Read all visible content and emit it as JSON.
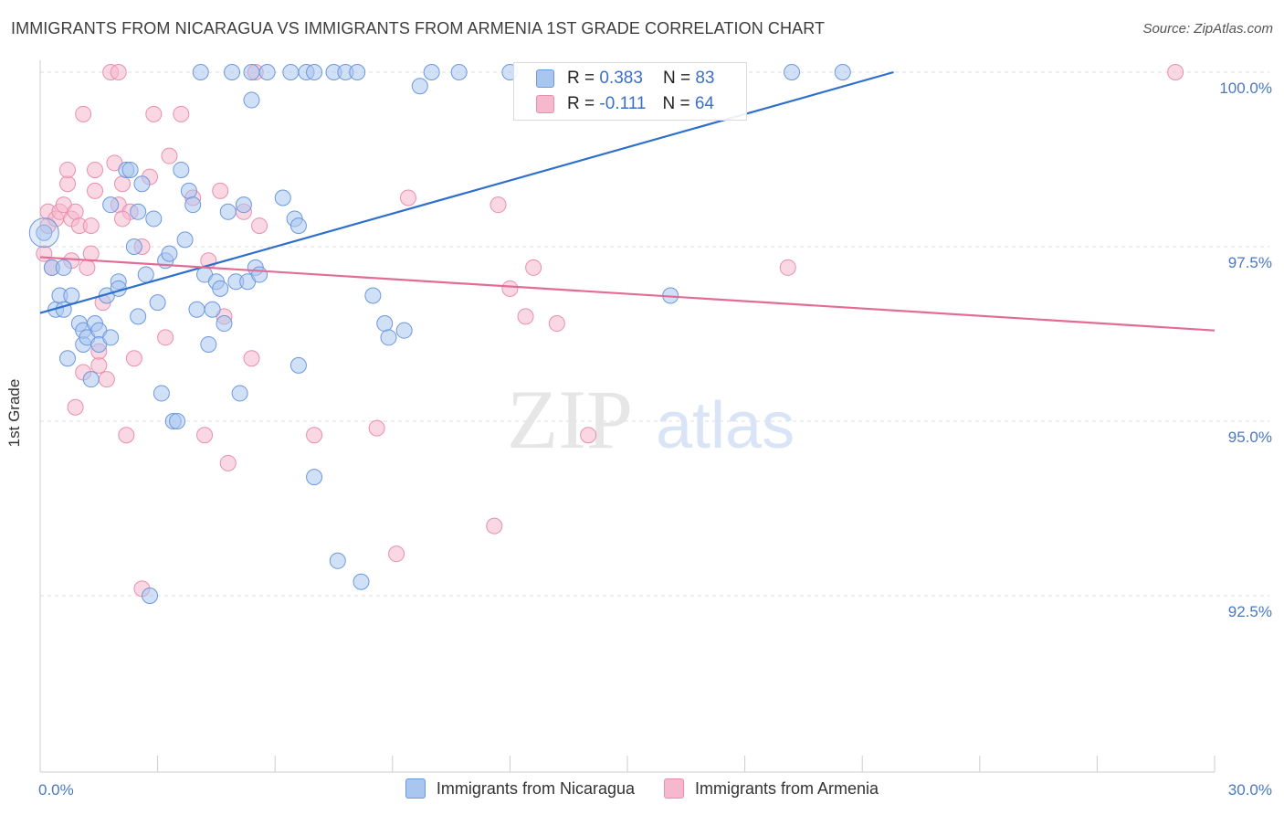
{
  "title": "IMMIGRANTS FROM NICARAGUA VS IMMIGRANTS FROM ARMENIA 1ST GRADE CORRELATION CHART",
  "source": "Source: ZipAtlas.com",
  "watermark": {
    "zip": "ZIP",
    "atlas": "atlas"
  },
  "legend": {
    "series1": {
      "r_label": "R =",
      "r_value": "0.383",
      "n_label": "N =",
      "n_value": "83"
    },
    "series2": {
      "r_label": "R =",
      "r_value": "-0.111",
      "n_label": "N =",
      "n_value": "64"
    }
  },
  "colors": {
    "blue_fill": "#a9c6f0",
    "blue_stroke": "#6d98dd",
    "blue_line": "#2e6fcb",
    "pink_fill": "#f5b8cc",
    "pink_stroke": "#e98fae",
    "pink_line": "#e36c96",
    "tick_text": "#4a78c6",
    "grid": "#dddddd"
  },
  "chart_data": {
    "type": "scatter",
    "title": "IMMIGRANTS FROM NICARAGUA VS IMMIGRANTS FROM ARMENIA 1ST GRADE CORRELATION CHART",
    "xlabel": "",
    "ylabel": "1st Grade",
    "xlim": [
      0,
      30
    ],
    "ylim": [
      90.0,
      100.5
    ],
    "x_tick_labels": [
      "0.0%",
      "30.0%"
    ],
    "y_ticks": [
      92.5,
      95.0,
      97.5,
      100.0
    ],
    "y_tick_labels": [
      "92.5%",
      "95.0%",
      "97.5%",
      "100.0%"
    ],
    "grid": true,
    "series": [
      {
        "name": "Immigrants from Nicaragua",
        "trend": {
          "x": [
            0,
            21.8
          ],
          "y": [
            96.55,
            100.0
          ]
        },
        "points": [
          [
            0.1,
            97.7
          ],
          [
            0.3,
            97.2
          ],
          [
            0.4,
            96.6
          ],
          [
            0.5,
            96.8
          ],
          [
            0.6,
            96.6
          ],
          [
            0.6,
            97.2
          ],
          [
            0.7,
            95.9
          ],
          [
            0.8,
            96.8
          ],
          [
            1.0,
            96.4
          ],
          [
            1.1,
            96.1
          ],
          [
            1.1,
            96.3
          ],
          [
            1.2,
            96.2
          ],
          [
            1.3,
            95.6
          ],
          [
            1.4,
            96.4
          ],
          [
            1.5,
            96.3
          ],
          [
            1.5,
            96.1
          ],
          [
            1.7,
            96.8
          ],
          [
            1.8,
            96.2
          ],
          [
            1.8,
            98.1
          ],
          [
            2.0,
            97.0
          ],
          [
            2.0,
            96.9
          ],
          [
            2.2,
            98.6
          ],
          [
            2.3,
            98.6
          ],
          [
            2.4,
            97.5
          ],
          [
            2.5,
            98.0
          ],
          [
            2.5,
            96.5
          ],
          [
            2.6,
            98.4
          ],
          [
            2.7,
            97.1
          ],
          [
            2.8,
            92.5
          ],
          [
            2.9,
            97.9
          ],
          [
            3.0,
            96.7
          ],
          [
            3.1,
            95.4
          ],
          [
            3.2,
            97.3
          ],
          [
            3.3,
            97.4
          ],
          [
            3.4,
            95.0
          ],
          [
            3.5,
            95.0
          ],
          [
            3.6,
            98.6
          ],
          [
            3.7,
            97.6
          ],
          [
            3.8,
            98.3
          ],
          [
            3.9,
            98.1
          ],
          [
            4.0,
            96.6
          ],
          [
            4.2,
            97.1
          ],
          [
            4.3,
            96.1
          ],
          [
            4.4,
            96.6
          ],
          [
            4.5,
            97.0
          ],
          [
            4.6,
            96.9
          ],
          [
            4.7,
            96.4
          ],
          [
            4.8,
            98.0
          ],
          [
            5.0,
            97.0
          ],
          [
            5.1,
            95.4
          ],
          [
            5.2,
            98.1
          ],
          [
            5.3,
            97.0
          ],
          [
            5.5,
            97.2
          ],
          [
            5.6,
            97.1
          ],
          [
            5.4,
            99.6
          ],
          [
            5.4,
            100.0
          ],
          [
            5.8,
            100.0
          ],
          [
            6.2,
            98.2
          ],
          [
            6.4,
            100.0
          ],
          [
            6.5,
            97.9
          ],
          [
            6.6,
            97.8
          ],
          [
            6.6,
            95.8
          ],
          [
            6.8,
            100.0
          ],
          [
            7.0,
            94.2
          ],
          [
            7.0,
            100.0
          ],
          [
            7.5,
            100.0
          ],
          [
            7.6,
            93.0
          ],
          [
            7.8,
            100.0
          ],
          [
            8.1,
            100.0
          ],
          [
            8.2,
            92.7
          ],
          [
            8.5,
            96.8
          ],
          [
            8.8,
            96.4
          ],
          [
            8.9,
            96.2
          ],
          [
            9.3,
            96.3
          ],
          [
            9.7,
            99.8
          ],
          [
            10.0,
            100.0
          ],
          [
            10.7,
            100.0
          ],
          [
            12.0,
            100.0
          ],
          [
            16.1,
            96.8
          ],
          [
            19.2,
            100.0
          ],
          [
            20.5,
            100.0
          ],
          [
            4.1,
            100.0
          ],
          [
            4.9,
            100.0
          ]
        ]
      },
      {
        "name": "Immigrants from Armenia",
        "trend": {
          "x": [
            0,
            30
          ],
          "y": [
            97.35,
            96.3
          ]
        },
        "points": [
          [
            0.1,
            97.4
          ],
          [
            0.2,
            98.0
          ],
          [
            0.2,
            97.8
          ],
          [
            0.3,
            97.2
          ],
          [
            0.4,
            97.9
          ],
          [
            0.5,
            98.0
          ],
          [
            0.6,
            98.1
          ],
          [
            0.7,
            98.4
          ],
          [
            0.7,
            98.6
          ],
          [
            0.8,
            97.9
          ],
          [
            0.8,
            97.3
          ],
          [
            0.9,
            95.2
          ],
          [
            0.9,
            98.0
          ],
          [
            1.0,
            97.8
          ],
          [
            1.1,
            99.4
          ],
          [
            1.1,
            95.7
          ],
          [
            1.2,
            97.2
          ],
          [
            1.3,
            97.4
          ],
          [
            1.3,
            97.8
          ],
          [
            1.4,
            98.3
          ],
          [
            1.4,
            98.6
          ],
          [
            1.5,
            95.8
          ],
          [
            1.5,
            96.0
          ],
          [
            1.6,
            96.7
          ],
          [
            1.7,
            95.6
          ],
          [
            1.8,
            100.0
          ],
          [
            1.9,
            98.7
          ],
          [
            2.0,
            98.1
          ],
          [
            2.0,
            100.0
          ],
          [
            2.1,
            98.4
          ],
          [
            2.2,
            94.8
          ],
          [
            2.3,
            98.0
          ],
          [
            2.4,
            95.9
          ],
          [
            2.6,
            97.5
          ],
          [
            2.6,
            92.6
          ],
          [
            2.8,
            98.5
          ],
          [
            2.9,
            99.4
          ],
          [
            3.2,
            96.2
          ],
          [
            3.3,
            98.8
          ],
          [
            3.6,
            99.4
          ],
          [
            3.9,
            98.2
          ],
          [
            4.2,
            94.8
          ],
          [
            4.3,
            97.3
          ],
          [
            4.6,
            98.3
          ],
          [
            4.7,
            96.5
          ],
          [
            4.8,
            94.4
          ],
          [
            5.2,
            98.0
          ],
          [
            5.4,
            95.9
          ],
          [
            5.5,
            100.0
          ],
          [
            5.6,
            97.8
          ],
          [
            7.0,
            94.8
          ],
          [
            8.6,
            94.9
          ],
          [
            9.1,
            93.1
          ],
          [
            9.4,
            98.2
          ],
          [
            11.6,
            93.5
          ],
          [
            11.7,
            98.1
          ],
          [
            12.0,
            96.9
          ],
          [
            12.4,
            96.5
          ],
          [
            12.6,
            97.2
          ],
          [
            13.2,
            96.4
          ],
          [
            14.0,
            94.8
          ],
          [
            19.1,
            97.2
          ],
          [
            29.0,
            100.0
          ],
          [
            2.1,
            97.9
          ]
        ]
      }
    ]
  },
  "bottom_legend": {
    "series1_label": "Immigrants from Nicaragua",
    "series2_label": "Immigrants from Armenia"
  }
}
